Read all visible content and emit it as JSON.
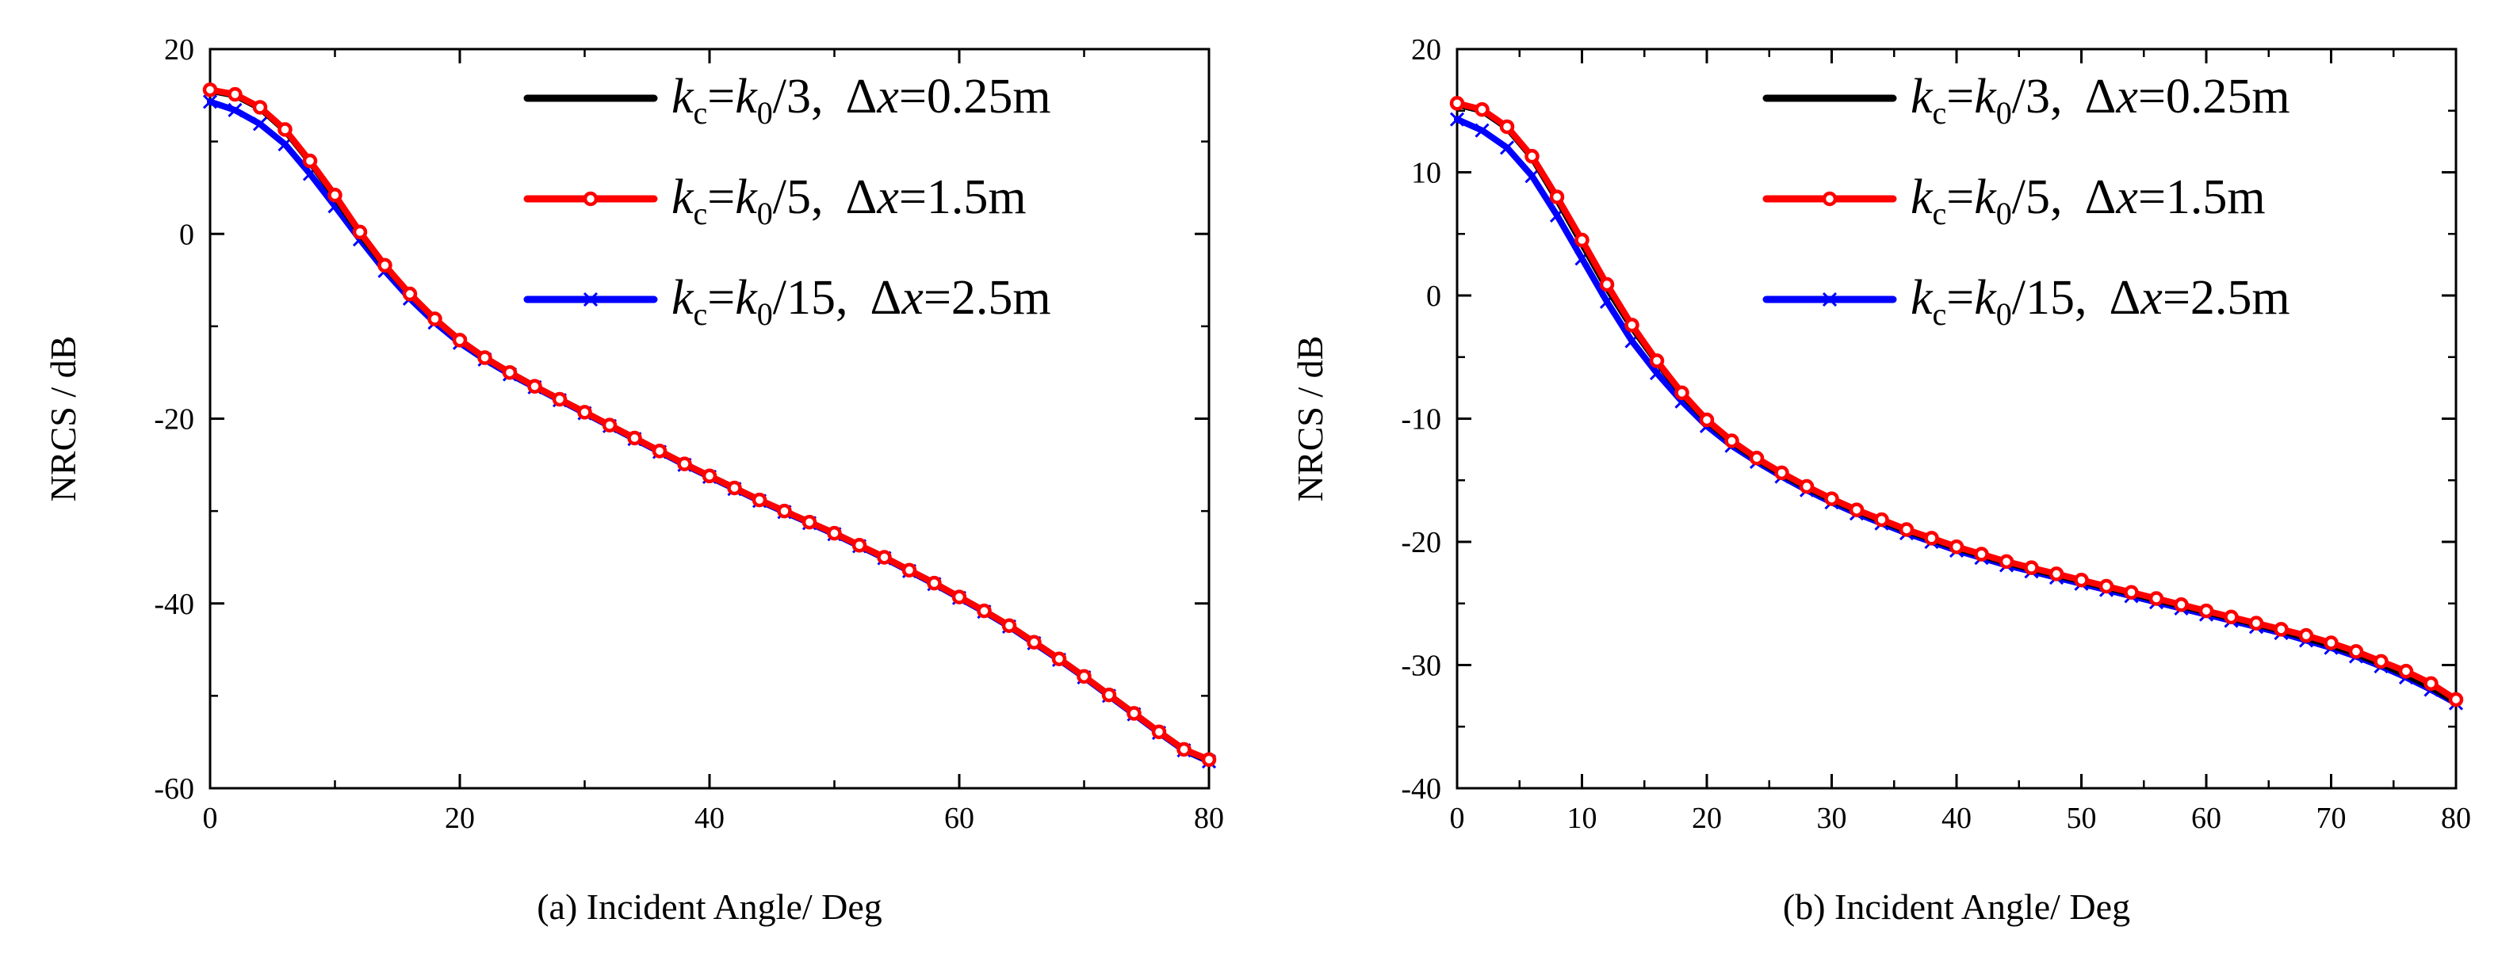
{
  "figure_description_free": true,
  "legend": [
    {
      "k": "k",
      "c": "c",
      "eq": "=",
      "k0": "k",
      "zero": "0",
      "div": "/3,",
      "delta": "Δ",
      "x": "x",
      "val": "=0.25m",
      "color": "#000000",
      "marker": "none"
    },
    {
      "k": "k",
      "c": "c",
      "eq": "=",
      "k0": "k",
      "zero": "0",
      "div": "/5,",
      "delta": "Δ",
      "x": "x",
      "val": "=1.5m",
      "color": "#ff0000",
      "marker": "circle"
    },
    {
      "k": "k",
      "c": "c",
      "eq": "=",
      "k0": "k",
      "zero": "0",
      "div": "/15,",
      "delta": "Δ",
      "x": "x",
      "val": "=2.5m",
      "color": "#0000ff",
      "marker": "x"
    }
  ],
  "chart_data": [
    {
      "type": "line",
      "title": "",
      "xlabel": "(a) Incident Angle/ Deg",
      "ylabel": "NRCS / dB",
      "xlim": [
        0,
        80
      ],
      "ylim": [
        -60,
        20
      ],
      "xticks": [
        0,
        20,
        40,
        60,
        80
      ],
      "yticks": [
        -60,
        -40,
        -20,
        0,
        20
      ],
      "xtick_labels": [
        "0",
        "20",
        "40",
        "60",
        "80"
      ],
      "ytick_labels": [
        "-60",
        "-40",
        "-20",
        "0",
        "20"
      ],
      "legend_position": "top-right",
      "x": [
        0,
        2,
        4,
        6,
        8,
        10,
        12,
        14,
        16,
        18,
        20,
        22,
        24,
        26,
        28,
        30,
        32,
        34,
        36,
        38,
        40,
        42,
        44,
        46,
        48,
        50,
        52,
        54,
        56,
        58,
        60,
        62,
        64,
        66,
        68,
        70,
        72,
        74,
        76,
        78,
        80
      ],
      "series": [
        {
          "name": "kc=k0/3, Δx=0.25m",
          "color": "#000000",
          "marker": "none",
          "values": [
            15.5,
            15.0,
            13.6,
            11.2,
            7.8,
            4.0,
            0.0,
            -3.5,
            -6.5,
            -9.2,
            -11.5,
            -13.4,
            -15.0,
            -16.5,
            -17.9,
            -19.3,
            -20.7,
            -22.1,
            -23.5,
            -24.9,
            -26.2,
            -27.5,
            -28.8,
            -30.0,
            -31.2,
            -32.4,
            -33.7,
            -35.0,
            -36.4,
            -37.8,
            -39.3,
            -40.8,
            -42.4,
            -44.2,
            -46.0,
            -47.9,
            -49.9,
            -51.9,
            -53.9,
            -55.8,
            -57.0
          ]
        },
        {
          "name": "kc=k0/5, Δx=1.5m",
          "color": "#ff0000",
          "marker": "circle",
          "values": [
            15.6,
            15.1,
            13.7,
            11.3,
            7.9,
            4.2,
            0.2,
            -3.4,
            -6.5,
            -9.2,
            -11.5,
            -13.4,
            -15.0,
            -16.5,
            -17.9,
            -19.3,
            -20.7,
            -22.1,
            -23.5,
            -24.9,
            -26.2,
            -27.5,
            -28.8,
            -30.0,
            -31.2,
            -32.4,
            -33.7,
            -35.0,
            -36.4,
            -37.8,
            -39.3,
            -40.8,
            -42.4,
            -44.2,
            -46.0,
            -47.9,
            -49.9,
            -51.9,
            -53.9,
            -55.8,
            -56.9
          ]
        },
        {
          "name": "kc=k0/15, Δx=2.5m",
          "color": "#0000ff",
          "marker": "x",
          "values": [
            14.3,
            13.4,
            11.9,
            9.7,
            6.5,
            3.0,
            -0.6,
            -4.0,
            -7.0,
            -9.6,
            -11.8,
            -13.6,
            -15.2,
            -16.6,
            -18.0,
            -19.4,
            -20.8,
            -22.2,
            -23.6,
            -25.0,
            -26.3,
            -27.6,
            -28.9,
            -30.1,
            -31.3,
            -32.5,
            -33.8,
            -35.1,
            -36.5,
            -37.9,
            -39.4,
            -40.9,
            -42.5,
            -44.3,
            -46.1,
            -48.0,
            -50.0,
            -52.0,
            -54.0,
            -55.9,
            -57.1
          ]
        }
      ]
    },
    {
      "type": "line",
      "title": "",
      "xlabel": "(b) Incident Angle/ Deg",
      "ylabel": "NRCS / dB",
      "xlim": [
        0,
        80
      ],
      "ylim": [
        -40,
        20
      ],
      "xticks": [
        0,
        10,
        20,
        30,
        40,
        50,
        60,
        70,
        80
      ],
      "yticks": [
        -40,
        -30,
        -20,
        -10,
        0,
        10,
        20
      ],
      "xtick_labels": [
        "0",
        "10",
        "20",
        "30",
        "40",
        "50",
        "60",
        "70",
        "80"
      ],
      "ytick_labels": [
        "-40",
        "-30",
        "-20",
        "-10",
        "0",
        "10",
        "20"
      ],
      "legend_position": "top-right",
      "x": [
        0,
        2,
        4,
        6,
        8,
        10,
        12,
        14,
        16,
        18,
        20,
        22,
        24,
        26,
        28,
        30,
        32,
        34,
        36,
        38,
        40,
        42,
        44,
        46,
        48,
        50,
        52,
        54,
        56,
        58,
        60,
        62,
        64,
        66,
        68,
        70,
        72,
        74,
        76,
        78,
        80
      ],
      "series": [
        {
          "name": "kc=k0/3, Δx=0.25m",
          "color": "#000000",
          "marker": "none",
          "values": [
            15.5,
            15.0,
            13.6,
            11.2,
            7.8,
            4.2,
            0.6,
            -2.6,
            -5.4,
            -8.0,
            -10.2,
            -11.9,
            -13.3,
            -14.5,
            -15.6,
            -16.6,
            -17.5,
            -18.3,
            -19.1,
            -19.8,
            -20.5,
            -21.1,
            -21.7,
            -22.2,
            -22.7,
            -23.2,
            -23.7,
            -24.2,
            -24.7,
            -25.2,
            -25.7,
            -26.2,
            -26.7,
            -27.2,
            -27.8,
            -28.4,
            -29.1,
            -29.9,
            -30.8,
            -31.8,
            -33.0
          ]
        },
        {
          "name": "kc=k0/5, Δx=1.5m",
          "color": "#ff0000",
          "marker": "circle",
          "values": [
            15.6,
            15.1,
            13.7,
            11.3,
            8.0,
            4.5,
            0.9,
            -2.4,
            -5.3,
            -7.9,
            -10.1,
            -11.8,
            -13.2,
            -14.4,
            -15.5,
            -16.5,
            -17.4,
            -18.2,
            -19.0,
            -19.7,
            -20.4,
            -21.0,
            -21.6,
            -22.1,
            -22.6,
            -23.1,
            -23.6,
            -24.1,
            -24.6,
            -25.1,
            -25.6,
            -26.1,
            -26.6,
            -27.1,
            -27.6,
            -28.2,
            -28.9,
            -29.7,
            -30.5,
            -31.5,
            -32.8
          ]
        },
        {
          "name": "kc=k0/15, Δx=2.5m",
          "color": "#0000ff",
          "marker": "x",
          "values": [
            14.3,
            13.4,
            12.0,
            9.7,
            6.5,
            3.0,
            -0.5,
            -3.7,
            -6.3,
            -8.6,
            -10.6,
            -12.2,
            -13.5,
            -14.7,
            -15.8,
            -16.8,
            -17.7,
            -18.5,
            -19.3,
            -20.0,
            -20.7,
            -21.3,
            -21.9,
            -22.4,
            -22.9,
            -23.4,
            -23.9,
            -24.4,
            -24.9,
            -25.4,
            -25.9,
            -26.4,
            -26.9,
            -27.4,
            -28.0,
            -28.6,
            -29.3,
            -30.1,
            -31.0,
            -32.0,
            -33.1
          ]
        }
      ]
    }
  ]
}
